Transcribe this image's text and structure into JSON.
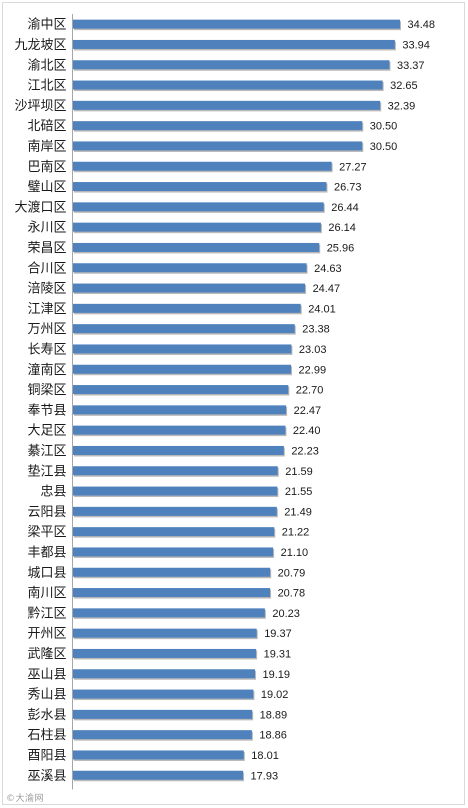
{
  "chart_data": {
    "type": "bar",
    "orientation": "horizontal",
    "categories": [
      "渝中区",
      "九龙坡区",
      "渝北区",
      "江北区",
      "沙坪坝区",
      "北碚区",
      "南岸区",
      "巴南区",
      "璧山区",
      "大渡口区",
      "永川区",
      "荣昌区",
      "合川区",
      "涪陵区",
      "江津区",
      "万州区",
      "长寿区",
      "潼南区",
      "铜梁区",
      "奉节县",
      "大足区",
      "綦江区",
      "垫江县",
      "忠县",
      "云阳县",
      "梁平区",
      "丰都县",
      "城口县",
      "南川区",
      "黔江区",
      "开州区",
      "武隆区",
      "巫山县",
      "秀山县",
      "彭水县",
      "石柱县",
      "酉阳县",
      "巫溪县"
    ],
    "value_labels": [
      "34.48",
      "33.94",
      "33.37",
      "32.65",
      "32.39",
      "30.50",
      "30.50",
      "27.27",
      "26.73",
      "26.44",
      "26.14",
      "25.96",
      "24.63",
      "24.47",
      "24.01",
      "23.38",
      "23.03",
      "22.99",
      "22.70",
      "22.47",
      "22.40",
      "22.23",
      "21.59",
      "21.55",
      "21.49",
      "21.22",
      "21.10",
      "20.79",
      "20.78",
      "20.23",
      "19.37",
      "19.31",
      "19.19",
      "19.02",
      "18.89",
      "18.86",
      "18.01",
      "17.93"
    ],
    "values": [
      34.48,
      33.94,
      33.37,
      32.65,
      32.39,
      30.5,
      30.5,
      27.27,
      26.73,
      26.44,
      26.14,
      25.96,
      24.63,
      24.47,
      24.01,
      23.38,
      23.03,
      22.99,
      22.7,
      22.47,
      22.4,
      22.23,
      21.59,
      21.55,
      21.49,
      21.22,
      21.1,
      20.79,
      20.78,
      20.23,
      19.37,
      19.31,
      19.19,
      19.02,
      18.89,
      18.86,
      18.01,
      17.93
    ],
    "xlim": [
      0,
      34.48
    ],
    "grid": false,
    "legend": "none",
    "bar_color": "#4f81bd"
  },
  "watermark": "©大渝网"
}
